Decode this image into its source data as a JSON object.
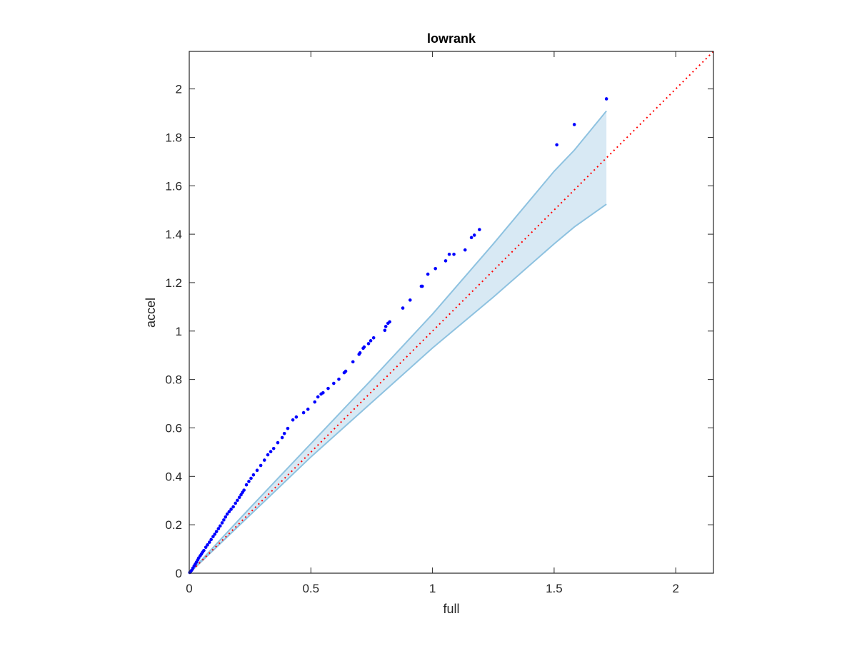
{
  "chart_data": {
    "type": "scatter",
    "title": "lowrank",
    "xlabel": "full",
    "ylabel": "accel",
    "xlim": [
      0,
      2.155
    ],
    "ylim": [
      0,
      2.155
    ],
    "xticks": [
      0,
      0.5,
      1,
      1.5,
      2
    ],
    "xtick_labels": [
      "0",
      "0.5",
      "1",
      "1.5",
      "2"
    ],
    "yticks": [
      0,
      0.2,
      0.4,
      0.6,
      0.8,
      1,
      1.2,
      1.4,
      1.6,
      1.8,
      2
    ],
    "ytick_labels": [
      "0",
      "0.2",
      "0.4",
      "0.6",
      "0.8",
      "1",
      "1.2",
      "1.4",
      "1.6",
      "1.8",
      "2"
    ],
    "grid": false,
    "colors": {
      "points": "#0000ff",
      "reference": "#ff0000",
      "band_fill": "#d8e9f4",
      "band_edge": "#8ec2e0",
      "axes": "#262626"
    },
    "reference_line": {
      "style": "dotted",
      "from": [
        0,
        0
      ],
      "to": [
        2.155,
        2.155
      ]
    },
    "band": {
      "x": [
        0,
        0.25,
        0.5,
        0.75,
        1,
        1.25,
        1.5,
        1.583,
        1.715
      ],
      "upper": [
        0,
        0.27,
        0.535,
        0.8,
        1.07,
        1.36,
        1.66,
        1.747,
        1.909
      ],
      "lower": [
        0,
        0.24,
        0.48,
        0.705,
        0.93,
        1.14,
        1.36,
        1.43,
        1.524
      ]
    },
    "points": [
      [
        0.002,
        0.003
      ],
      [
        0.005,
        0.006
      ],
      [
        0.01,
        0.012
      ],
      [
        0.015,
        0.021
      ],
      [
        0.02,
        0.03
      ],
      [
        0.025,
        0.038
      ],
      [
        0.03,
        0.046
      ],
      [
        0.035,
        0.055
      ],
      [
        0.039,
        0.063
      ],
      [
        0.045,
        0.072
      ],
      [
        0.05,
        0.079
      ],
      [
        0.055,
        0.087
      ],
      [
        0.06,
        0.094
      ],
      [
        0.068,
        0.107
      ],
      [
        0.075,
        0.117
      ],
      [
        0.083,
        0.128
      ],
      [
        0.09,
        0.139
      ],
      [
        0.098,
        0.151
      ],
      [
        0.105,
        0.161
      ],
      [
        0.112,
        0.172
      ],
      [
        0.12,
        0.184
      ],
      [
        0.127,
        0.195
      ],
      [
        0.135,
        0.208
      ],
      [
        0.142,
        0.22
      ],
      [
        0.149,
        0.232
      ],
      [
        0.156,
        0.244
      ],
      [
        0.164,
        0.254
      ],
      [
        0.172,
        0.264
      ],
      [
        0.181,
        0.274
      ],
      [
        0.19,
        0.289
      ],
      [
        0.198,
        0.301
      ],
      [
        0.206,
        0.313
      ],
      [
        0.213,
        0.324
      ],
      [
        0.219,
        0.334
      ],
      [
        0.225,
        0.343
      ],
      [
        0.235,
        0.365
      ],
      [
        0.245,
        0.379
      ],
      [
        0.254,
        0.392
      ],
      [
        0.264,
        0.406
      ],
      [
        0.279,
        0.425
      ],
      [
        0.294,
        0.445
      ],
      [
        0.309,
        0.467
      ],
      [
        0.323,
        0.489
      ],
      [
        0.335,
        0.502
      ],
      [
        0.347,
        0.515
      ],
      [
        0.364,
        0.539
      ],
      [
        0.382,
        0.56
      ],
      [
        0.391,
        0.577
      ],
      [
        0.405,
        0.598
      ],
      [
        0.426,
        0.633
      ],
      [
        0.44,
        0.645
      ],
      [
        0.47,
        0.663
      ],
      [
        0.488,
        0.677
      ],
      [
        0.516,
        0.707
      ],
      [
        0.529,
        0.728
      ],
      [
        0.542,
        0.74
      ],
      [
        0.55,
        0.745
      ],
      [
        0.571,
        0.763
      ],
      [
        0.594,
        0.784
      ],
      [
        0.615,
        0.801
      ],
      [
        0.637,
        0.828
      ],
      [
        0.643,
        0.834
      ],
      [
        0.673,
        0.873
      ],
      [
        0.698,
        0.904
      ],
      [
        0.702,
        0.91
      ],
      [
        0.715,
        0.929
      ],
      [
        0.719,
        0.934
      ],
      [
        0.737,
        0.948
      ],
      [
        0.746,
        0.96
      ],
      [
        0.758,
        0.972
      ],
      [
        0.804,
        1.003
      ],
      [
        0.808,
        1.019
      ],
      [
        0.817,
        1.032
      ],
      [
        0.824,
        1.038
      ],
      [
        0.878,
        1.095
      ],
      [
        0.908,
        1.128
      ],
      [
        0.954,
        1.185
      ],
      [
        0.958,
        1.185
      ],
      [
        0.981,
        1.235
      ],
      [
        1.012,
        1.258
      ],
      [
        1.054,
        1.29
      ],
      [
        1.069,
        1.317
      ],
      [
        1.088,
        1.317
      ],
      [
        1.134,
        1.335
      ],
      [
        1.16,
        1.386
      ],
      [
        1.172,
        1.396
      ],
      [
        1.193,
        1.419
      ],
      [
        1.511,
        1.769
      ],
      [
        1.583,
        1.853
      ],
      [
        1.715,
        1.959
      ]
    ]
  }
}
